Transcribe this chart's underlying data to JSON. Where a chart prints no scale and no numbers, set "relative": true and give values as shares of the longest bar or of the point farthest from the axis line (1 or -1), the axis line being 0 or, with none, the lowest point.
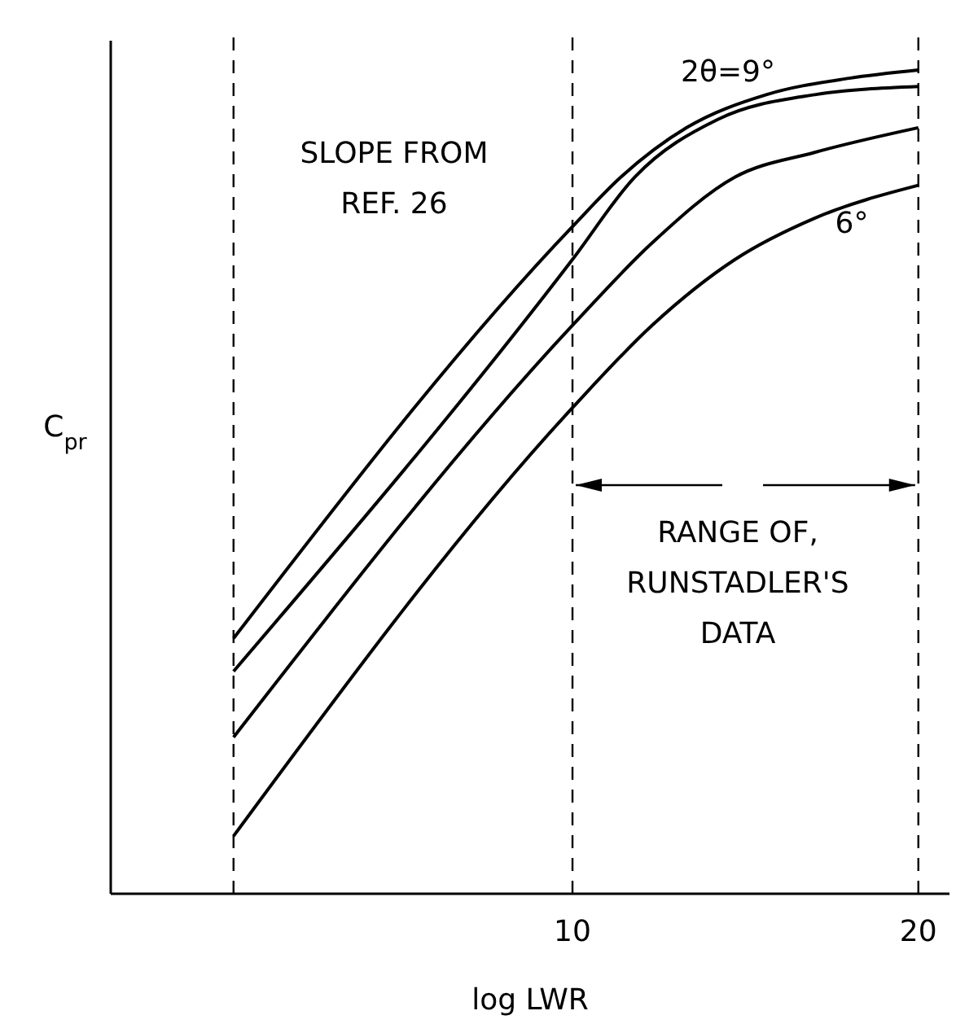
{
  "chart_data": {
    "type": "line",
    "relative": true,
    "xlabel": "log LWR",
    "ylabel": "C$_{pr}$",
    "xlim": [
      -3.35,
      20.9
    ],
    "xticks": [
      10,
      20
    ],
    "grid": false,
    "marker": "none",
    "line_style": "solid",
    "tick_labels": "x",
    "series": [
      {
        "color": "#000000",
        "x": [
          0.2,
          10,
          11.4,
          13.3,
          15.6,
          18,
          20
        ],
        "values": [
          0.31,
          0.81,
          0.87,
          0.93,
          0.97,
          0.99,
          1
        ]
      },
      {
        "color": "#000000",
        "x": [
          0.2,
          10,
          11.8,
          14.2,
          17,
          20
        ],
        "values": [
          0.27,
          0.77,
          0.87,
          0.94,
          0.97,
          0.98
        ]
      },
      {
        "color": "#000000",
        "x": [
          0.2,
          10,
          12.3,
          14.7,
          17,
          20
        ],
        "values": [
          0.19,
          0.69,
          0.79,
          0.87,
          0.9,
          0.93
        ]
      },
      {
        "color": "#000000",
        "x": [
          0.2,
          10,
          12.3,
          14.7,
          17,
          20
        ],
        "values": [
          0.07,
          0.59,
          0.69,
          0.77,
          0.82,
          0.86
        ]
      }
    ],
    "ref_lines": [
      {
        "axis": "x",
        "value": 0.2,
        "line_style": "dashed",
        "color": "#000000"
      },
      {
        "axis": "x",
        "value": 10,
        "line_style": "dashed",
        "color": "#000000"
      },
      {
        "axis": "x",
        "value": 20,
        "line_style": "dashed",
        "color": "#000000"
      }
    ],
    "annotations": [
      "2θ=9°",
      "6°",
      "SLOPE FROM\nREF. 26",
      "RANGE OF,\nRUNSTADLER'S\nDATA"
    ]
  }
}
